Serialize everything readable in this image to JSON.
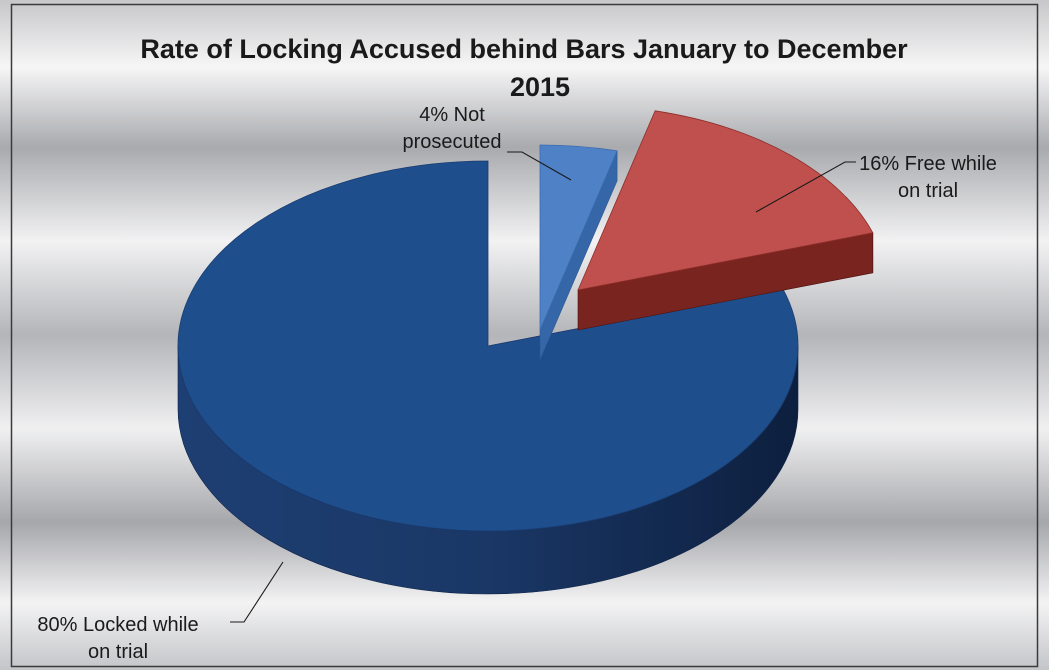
{
  "chart_data": {
    "type": "pie",
    "title_line1": "Rate of Locking Accused behind Bars January to December",
    "title_line2": "2015",
    "categories": [
      "Locked while on trial",
      "Not prosecuted",
      "Free while on trial"
    ],
    "values": [
      80,
      4,
      16
    ],
    "colors": {
      "locked": "#1f4e8c",
      "not_prosecuted": "#4f81c7",
      "free": "#c0504d"
    },
    "labels": {
      "not_prosecuted": [
        "4% Not",
        "prosecuted"
      ],
      "free": [
        "16% Free while",
        "on trial"
      ],
      "locked": [
        "80% Locked while",
        "on trial"
      ]
    },
    "exploded": true,
    "three_d": true
  }
}
